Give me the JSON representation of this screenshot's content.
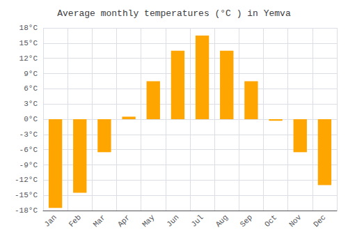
{
  "chart_data": {
    "type": "bar",
    "title": "Average monthly temperatures (°C ) in Yemva",
    "categories": [
      "Jan",
      "Feb",
      "Mar",
      "Apr",
      "May",
      "Jun",
      "Jul",
      "Aug",
      "Sep",
      "Oct",
      "Nov",
      "Dec"
    ],
    "values": [
      -17.5,
      -14.5,
      -6.5,
      0.5,
      7.5,
      13.5,
      16.5,
      13.5,
      7.5,
      -0.3,
      -6.5,
      -13.0
    ],
    "color": "#FFA500",
    "ylim": [
      -18,
      18
    ],
    "yticks": [
      {
        "value": -18,
        "label": "-18°C"
      },
      {
        "value": -15,
        "label": "-15°C"
      },
      {
        "value": -12,
        "label": "-12°C"
      },
      {
        "value": -9,
        "label": "-9°C"
      },
      {
        "value": -6,
        "label": "-6°C"
      },
      {
        "value": -3,
        "label": "-3°C"
      },
      {
        "value": 0,
        "label": "0°C"
      },
      {
        "value": 3,
        "label": "3°C"
      },
      {
        "value": 6,
        "label": "6°C"
      },
      {
        "value": 9,
        "label": "9°C"
      },
      {
        "value": 12,
        "label": "12°C"
      },
      {
        "value": 15,
        "label": "15°C"
      },
      {
        "value": 18,
        "label": "18°C"
      }
    ],
    "grid": true
  }
}
